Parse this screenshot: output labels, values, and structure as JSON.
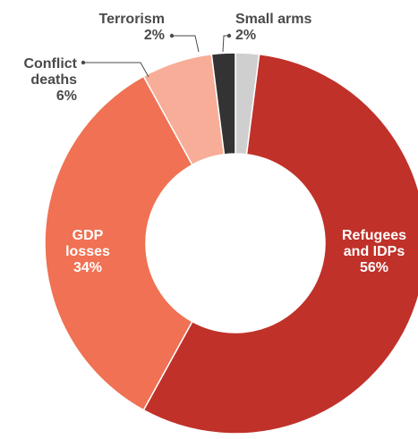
{
  "chart_data": {
    "type": "pie",
    "donut": true,
    "slices": [
      {
        "label": "Small arms",
        "value": 2,
        "value_label": "2%",
        "color": "#cfcfcf"
      },
      {
        "label": "Refugees and IDPs",
        "value": 56,
        "value_label": "56%",
        "color": "#c0312a"
      },
      {
        "label": "GDP losses",
        "value": 34,
        "value_label": "34%",
        "color": "#f07153"
      },
      {
        "label": "Conflict deaths",
        "value": 6,
        "value_label": "6%",
        "color": "#f7ad97"
      },
      {
        "label": "Terrorism",
        "value": 2,
        "value_label": "2%",
        "color": "#333333"
      }
    ],
    "labels": {
      "refugees": [
        "Refugees",
        "and IDPs",
        "56%"
      ],
      "gdp": [
        "GDP",
        "losses",
        "34%"
      ],
      "conflict": [
        "Conflict",
        "deaths",
        "6%"
      ],
      "terrorism": [
        "Terrorism",
        "2%"
      ],
      "small_arms": [
        "Small arms",
        "2%"
      ]
    },
    "legend": "none"
  }
}
